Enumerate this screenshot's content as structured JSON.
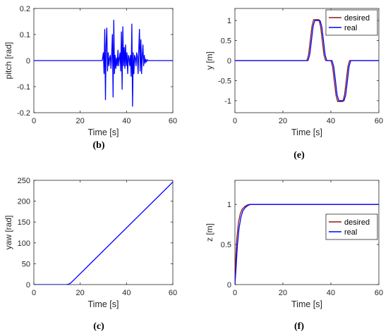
{
  "chart_data": [
    {
      "id": "b",
      "type": "line",
      "panel_label": "(b)",
      "xlabel": "Time [s]",
      "ylabel": "pitch [rad]",
      "xlim": [
        0,
        60
      ],
      "ylim": [
        -0.2,
        0.2
      ],
      "xticks": [
        "0",
        "20",
        "40",
        "60"
      ],
      "yticks": [
        "-0.2",
        "-0.1",
        "0",
        "0.1",
        "0.2"
      ],
      "legend": null,
      "series": [
        {
          "color": "#0000ff",
          "x": [
            0,
            29.5,
            30,
            30.3,
            30.6,
            30.9,
            31.2,
            31.5,
            31.8,
            32.1,
            32.4,
            32.7,
            33.0,
            33.3,
            33.6,
            33.9,
            34.2,
            34.5,
            34.8,
            35.1,
            35.4,
            35.7,
            36.0,
            36.3,
            36.6,
            36.9,
            37.2,
            37.5,
            37.8,
            38.1,
            38.4,
            38.7,
            39.0,
            39.3,
            39.6,
            39.9,
            40.2,
            40.5,
            40.8,
            41.1,
            41.4,
            41.7,
            42.0,
            42.3,
            42.6,
            42.9,
            43.2,
            43.5,
            43.8,
            44.1,
            44.4,
            44.7,
            45.0,
            45.3,
            45.6,
            45.9,
            46.2,
            46.5,
            46.8,
            47.1,
            47.4,
            47.7,
            48.0,
            48.3,
            48.6,
            48.9,
            49.5,
            50.0,
            60
          ],
          "y": [
            0,
            0,
            0.03,
            -0.05,
            0.12,
            -0.15,
            0.06,
            0.125,
            -0.04,
            0.03,
            -0.02,
            0.01,
            0.02,
            -0.03,
            0.02,
            0.1,
            -0.14,
            0.155,
            -0.05,
            0.02,
            -0.03,
            0.01,
            -0.02,
            0.04,
            -0.02,
            0.01,
            0.03,
            -0.04,
            0.11,
            -0.11,
            0.13,
            -0.02,
            0.05,
            -0.03,
            0.06,
            -0.02,
            0.03,
            -0.05,
            0.02,
            0.01,
            -0.02,
            0.02,
            -0.06,
            0.14,
            -0.175,
            0.03,
            -0.05,
            0.02,
            0.01,
            -0.02,
            0.03,
            0.015,
            -0.05,
            0.04,
            0.12,
            -0.04,
            0.08,
            -0.05,
            0.02,
            0.06,
            -0.02,
            0.02,
            -0.01,
            0.005,
            -0.005,
            0.003,
            0,
            0,
            0
          ]
        }
      ]
    },
    {
      "id": "e",
      "type": "line",
      "panel_label": "(e)",
      "xlabel": "Time [s]",
      "ylabel": "y [m]",
      "xlim": [
        0,
        60
      ],
      "ylim": [
        -1.3,
        1.3
      ],
      "xticks": [
        "0",
        "20",
        "40",
        "60"
      ],
      "yticks": [
        "-1",
        "-0.5",
        "0",
        "0.5",
        "1"
      ],
      "legend": "top-right",
      "series": [
        {
          "name": "desired",
          "color": "#8b1a1a",
          "x": [
            0,
            30,
            30.7,
            31.4,
            32.1,
            32.8,
            35.0,
            35.7,
            36.4,
            37.1,
            37.8,
            40,
            40.7,
            41.4,
            42.1,
            42.8,
            45.0,
            45.7,
            46.4,
            47.1,
            47.8,
            60
          ],
          "y": [
            0,
            0,
            0.15,
            0.5,
            0.85,
            1.02,
            1.02,
            0.85,
            0.5,
            0.15,
            0,
            0,
            -0.15,
            -0.5,
            -0.85,
            -1.02,
            -1.02,
            -0.85,
            -0.5,
            -0.15,
            0,
            0
          ]
        },
        {
          "name": "real",
          "color": "#0000ff",
          "x": [
            0,
            30.5,
            31.2,
            31.9,
            32.6,
            33.3,
            35.5,
            36.2,
            36.9,
            37.6,
            38.3,
            40.5,
            41.2,
            41.9,
            42.6,
            43.3,
            45.5,
            46.2,
            46.9,
            47.6,
            48.3,
            60
          ],
          "y": [
            0,
            0,
            0.15,
            0.5,
            0.85,
            1.0,
            1.0,
            0.85,
            0.5,
            0.15,
            0,
            0,
            -0.15,
            -0.5,
            -0.85,
            -1.0,
            -1.0,
            -0.85,
            -0.5,
            -0.15,
            0,
            0
          ]
        }
      ]
    },
    {
      "id": "c",
      "type": "line",
      "panel_label": "(c)",
      "xlabel": "Time [s]",
      "ylabel": "yaw [rad]",
      "xlim": [
        0,
        60
      ],
      "ylim": [
        0,
        250
      ],
      "xticks": [
        "0",
        "20",
        "40",
        "60"
      ],
      "yticks": [
        "0",
        "50",
        "100",
        "150",
        "200",
        "250"
      ],
      "legend": null,
      "series": [
        {
          "color": "#0000ff",
          "x": [
            0,
            14,
            15,
            16,
            60
          ],
          "y": [
            0,
            0,
            1,
            4,
            246
          ]
        }
      ]
    },
    {
      "id": "f",
      "type": "line",
      "panel_label": "(f)",
      "xlabel": "Time [s]",
      "ylabel": "z [m]",
      "xlim": [
        0,
        60
      ],
      "ylim": [
        0,
        1.3
      ],
      "xticks": [
        "0",
        "20",
        "40",
        "60"
      ],
      "yticks": [
        "0",
        "0.5",
        "1"
      ],
      "legend": "right",
      "series": [
        {
          "name": "desired",
          "color": "#8b1a1a",
          "x": [
            0,
            0.3,
            0.8,
            1.5,
            2.2,
            3,
            4,
            5,
            6,
            8,
            60
          ],
          "y": [
            0,
            0.3,
            0.58,
            0.78,
            0.88,
            0.94,
            0.97,
            0.99,
            1.0,
            1.0,
            1.0
          ]
        },
        {
          "name": "real",
          "color": "#0000ff",
          "x": [
            0,
            0.5,
            1,
            1.7,
            2.5,
            3.3,
            4.3,
            5.3,
            6.5,
            8.5,
            60
          ],
          "y": [
            0,
            0.22,
            0.48,
            0.7,
            0.84,
            0.92,
            0.96,
            0.985,
            1.0,
            1.0,
            1.0
          ]
        }
      ]
    }
  ]
}
